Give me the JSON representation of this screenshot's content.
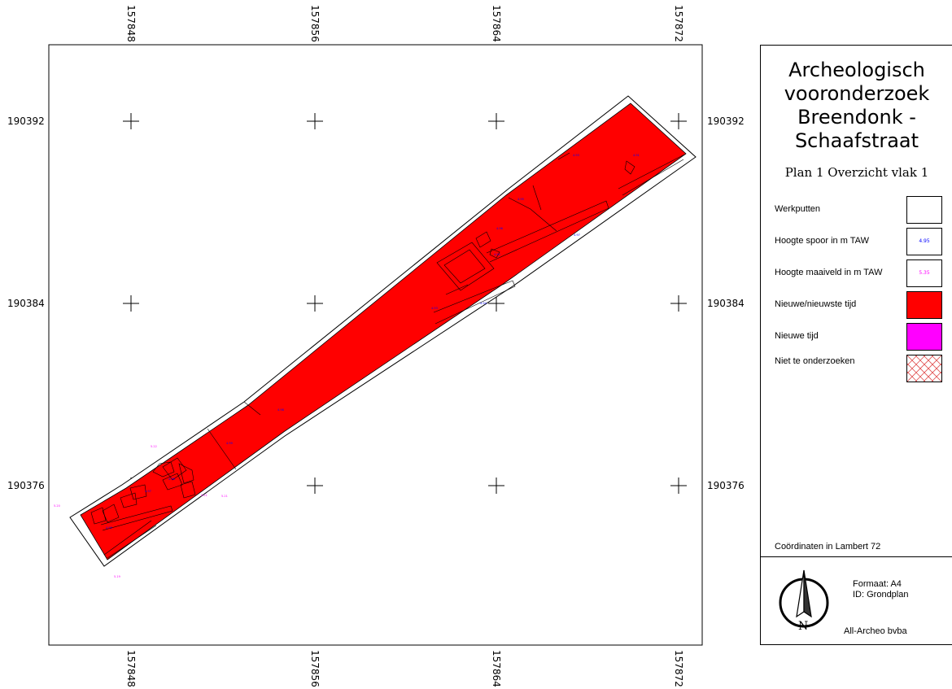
{
  "map": {
    "x_ticks": [
      "157848",
      "157856",
      "157864",
      "157872"
    ],
    "y_ticks": [
      "190392",
      "190384",
      "190376"
    ],
    "feature_colors": {
      "nieuwe_nieuwste_tijd": "#ff0000",
      "nieuwe_tijd": "#ff00ff",
      "spoor_height_text": "#0000ff",
      "maaiveld_height_text": "#ff00ff",
      "niet_te_onderzoeken_hatch": "#e05050"
    }
  },
  "legend": {
    "title_lines": [
      "Archeologisch",
      "vooronderzoek",
      "Breendonk -",
      "Schaafstraat"
    ],
    "subtitle": "Plan 1 Overzicht vlak 1",
    "items": [
      {
        "label": "Werkputten",
        "swatch": "white-box"
      },
      {
        "label": "Hoogte spoor in m TAW",
        "swatch": "blue-number",
        "sample": "4.95"
      },
      {
        "label": "Hoogte maaiveld in m TAW",
        "swatch": "magenta-number",
        "sample": "5.35"
      },
      {
        "label": "Nieuwe/nieuwste tijd",
        "swatch": "red-fill"
      },
      {
        "label": "Nieuwe tijd",
        "swatch": "magenta-fill"
      },
      {
        "label": "Niet te onderzoeken",
        "swatch": "red-crosshatch"
      }
    ],
    "coordinates_note": "Coördinaten in Lambert 72",
    "format": "Formaat: A4",
    "id": "ID: Grondplan",
    "company": "All-Archeo bvba",
    "north_letter": "N",
    "north_icon": "north-arrow-icon"
  }
}
